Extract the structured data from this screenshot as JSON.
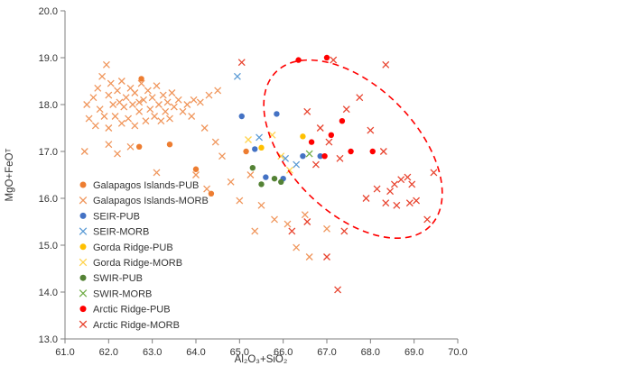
{
  "chart_data": {
    "type": "scatter",
    "title": "",
    "xlabel": "Al₂O₃+SiO₂",
    "ylabel": "MgO+FeOᵀ",
    "xlim": [
      61.0,
      70.0
    ],
    "ylim": [
      13.0,
      20.0
    ],
    "xticks": [
      "61.0",
      "62.0",
      "63.0",
      "64.0",
      "65.0",
      "66.0",
      "67.0",
      "68.0",
      "69.0",
      "70.0"
    ],
    "yticks": [
      "13.0",
      "14.0",
      "15.0",
      "16.0",
      "17.0",
      "18.0",
      "19.0",
      "20.0"
    ],
    "grid": "off",
    "legend_position": "inside-left",
    "series": [
      {
        "name": "Galapagos Islands-PUB",
        "marker": "circle",
        "color": "#ED7D31",
        "points": [
          [
            62.75,
            18.55
          ],
          [
            62.7,
            17.1
          ],
          [
            63.4,
            17.15
          ],
          [
            64.0,
            16.62
          ],
          [
            64.35,
            16.1
          ],
          [
            65.15,
            17.0
          ]
        ]
      },
      {
        "name": "Galapagos Islands-MORB",
        "marker": "x",
        "color": "#F0965C",
        "points": [
          [
            61.5,
            18.0
          ],
          [
            61.55,
            17.7
          ],
          [
            61.65,
            18.15
          ],
          [
            61.7,
            17.55
          ],
          [
            61.75,
            18.35
          ],
          [
            61.8,
            17.9
          ],
          [
            61.85,
            18.6
          ],
          [
            61.9,
            17.75
          ],
          [
            61.95,
            18.85
          ],
          [
            62.0,
            18.2
          ],
          [
            62.0,
            17.5
          ],
          [
            62.05,
            18.45
          ],
          [
            62.1,
            18.0
          ],
          [
            62.15,
            17.75
          ],
          [
            62.2,
            18.3
          ],
          [
            62.25,
            18.05
          ],
          [
            62.3,
            17.6
          ],
          [
            62.3,
            18.5
          ],
          [
            62.35,
            17.95
          ],
          [
            62.4,
            18.15
          ],
          [
            62.45,
            17.7
          ],
          [
            62.5,
            18.35
          ],
          [
            62.55,
            18.0
          ],
          [
            62.6,
            17.55
          ],
          [
            62.6,
            18.25
          ],
          [
            62.7,
            18.05
          ],
          [
            62.7,
            17.85
          ],
          [
            62.75,
            18.45
          ],
          [
            62.8,
            18.1
          ],
          [
            62.85,
            17.65
          ],
          [
            62.9,
            18.3
          ],
          [
            62.95,
            17.9
          ],
          [
            63.0,
            18.15
          ],
          [
            63.05,
            17.75
          ],
          [
            63.1,
            18.4
          ],
          [
            63.15,
            18.0
          ],
          [
            63.2,
            17.65
          ],
          [
            63.25,
            18.2
          ],
          [
            63.3,
            17.85
          ],
          [
            63.35,
            18.05
          ],
          [
            63.4,
            17.7
          ],
          [
            63.45,
            18.25
          ],
          [
            63.5,
            17.95
          ],
          [
            63.6,
            18.1
          ],
          [
            63.7,
            17.85
          ],
          [
            63.8,
            18.0
          ],
          [
            63.9,
            17.75
          ],
          [
            63.95,
            18.1
          ],
          [
            64.1,
            18.05
          ],
          [
            64.3,
            18.2
          ],
          [
            64.5,
            18.3
          ],
          [
            61.45,
            17.0
          ],
          [
            62.0,
            17.15
          ],
          [
            62.2,
            16.95
          ],
          [
            62.5,
            17.1
          ],
          [
            63.1,
            16.55
          ],
          [
            64.2,
            17.5
          ],
          [
            64.45,
            17.2
          ],
          [
            64.6,
            16.9
          ],
          [
            64.0,
            16.5
          ],
          [
            64.25,
            16.2
          ],
          [
            64.8,
            16.35
          ],
          [
            65.0,
            15.95
          ],
          [
            65.25,
            16.5
          ],
          [
            65.5,
            15.85
          ],
          [
            65.35,
            15.3
          ],
          [
            65.8,
            15.55
          ],
          [
            66.1,
            15.45
          ],
          [
            66.3,
            14.95
          ],
          [
            66.5,
            15.65
          ],
          [
            66.6,
            14.75
          ],
          [
            67.0,
            15.35
          ]
        ]
      },
      {
        "name": "SEIR-PUB",
        "marker": "circle",
        "color": "#4472C4",
        "points": [
          [
            65.05,
            17.75
          ],
          [
            65.35,
            17.05
          ],
          [
            65.85,
            17.8
          ],
          [
            65.6,
            16.45
          ],
          [
            66.0,
            16.42
          ],
          [
            66.45,
            16.9
          ],
          [
            66.85,
            16.9
          ]
        ]
      },
      {
        "name": "SEIR-MORB",
        "marker": "x",
        "color": "#5B9BD5",
        "points": [
          [
            64.95,
            18.6
          ],
          [
            65.45,
            17.3
          ],
          [
            66.05,
            16.85
          ],
          [
            66.3,
            16.72
          ]
        ]
      },
      {
        "name": "Gorda Ridge-PUB",
        "marker": "circle",
        "color": "#FFC000",
        "points": [
          [
            66.45,
            17.32
          ],
          [
            65.5,
            17.08
          ]
        ]
      },
      {
        "name": "Gorda Ridge-MORB",
        "marker": "x",
        "color": "#FFD34D",
        "points": [
          [
            65.2,
            17.25
          ],
          [
            65.75,
            17.35
          ],
          [
            65.95,
            16.9
          ],
          [
            66.15,
            16.6
          ]
        ]
      },
      {
        "name": "SWIR-PUB",
        "marker": "circle",
        "color": "#548235",
        "points": [
          [
            65.3,
            16.65
          ],
          [
            65.5,
            16.3
          ],
          [
            65.8,
            16.42
          ],
          [
            65.95,
            16.35
          ]
        ]
      },
      {
        "name": "SWIR-MORB",
        "marker": "x",
        "color": "#70AD47",
        "points": [
          [
            66.6,
            16.95
          ]
        ]
      },
      {
        "name": "Arctic Ridge-PUB",
        "marker": "circle",
        "color": "#FF0000",
        "points": [
          [
            66.35,
            18.95
          ],
          [
            67.0,
            19.0
          ],
          [
            67.35,
            17.65
          ],
          [
            67.55,
            17.0
          ],
          [
            68.05,
            17.0
          ],
          [
            66.65,
            17.2
          ],
          [
            67.1,
            17.35
          ],
          [
            66.95,
            16.9
          ]
        ]
      },
      {
        "name": "Arctic Ridge-MORB",
        "marker": "x",
        "color": "#E8432E",
        "points": [
          [
            65.05,
            18.9
          ],
          [
            67.15,
            18.95
          ],
          [
            67.75,
            18.15
          ],
          [
            68.35,
            18.85
          ],
          [
            67.45,
            17.9
          ],
          [
            68.0,
            17.45
          ],
          [
            68.3,
            17.0
          ],
          [
            68.55,
            16.3
          ],
          [
            68.7,
            16.4
          ],
          [
            68.85,
            16.45
          ],
          [
            68.95,
            16.3
          ],
          [
            68.35,
            15.9
          ],
          [
            68.6,
            15.85
          ],
          [
            69.05,
            15.95
          ],
          [
            69.3,
            15.55
          ],
          [
            68.15,
            16.2
          ],
          [
            68.45,
            16.15
          ],
          [
            67.9,
            16.0
          ],
          [
            67.4,
            15.3
          ],
          [
            67.0,
            14.75
          ],
          [
            66.55,
            15.5
          ],
          [
            66.2,
            15.3
          ],
          [
            67.25,
            14.05
          ],
          [
            69.45,
            16.55
          ],
          [
            68.9,
            15.9
          ],
          [
            66.55,
            17.85
          ],
          [
            66.85,
            17.5
          ],
          [
            67.05,
            17.2
          ],
          [
            66.75,
            16.72
          ],
          [
            67.3,
            16.85
          ]
        ]
      }
    ],
    "annotation_ellipse": {
      "cx": 67.6,
      "cy": 17.05,
      "rx": 2.5,
      "ry": 1.35,
      "rotation_deg": 45,
      "color": "#FF0000",
      "style": "dashed"
    }
  }
}
